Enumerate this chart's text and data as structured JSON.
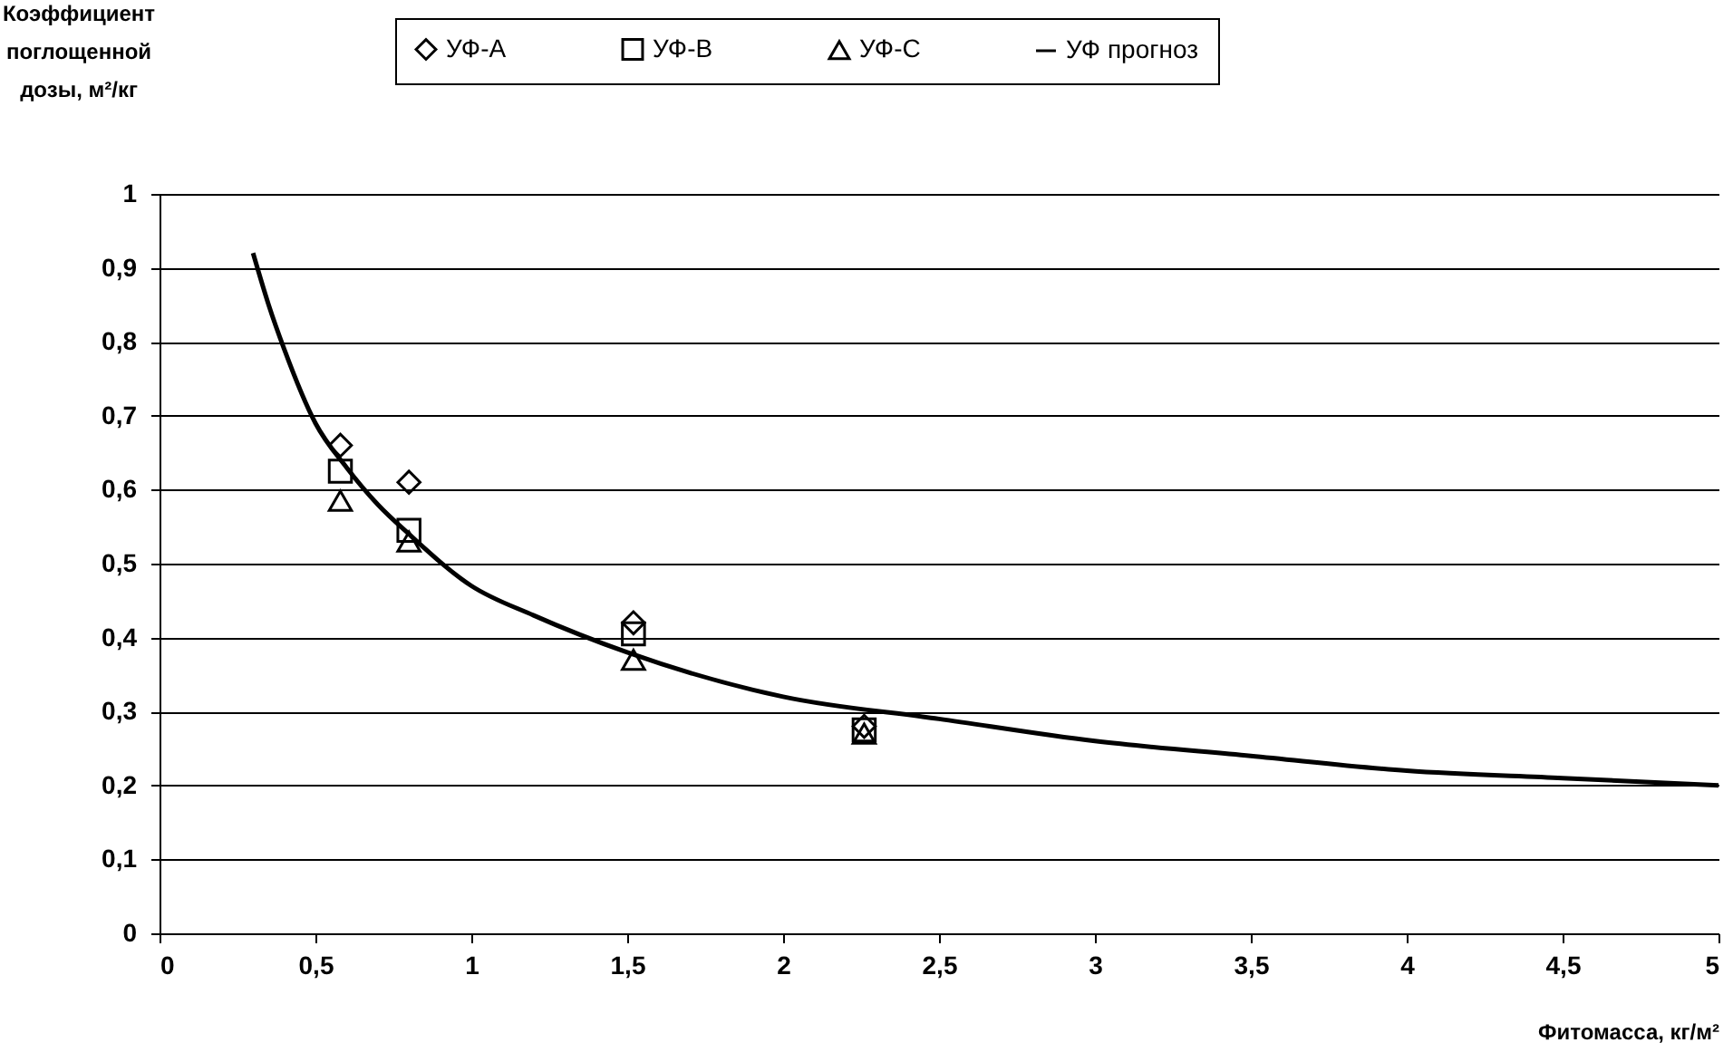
{
  "chart_data": {
    "type": "scatter",
    "xlabel": "Фитомасса, кг/м²",
    "ylabel": "Коэффициент поглощенной дозы, м²/кг",
    "x": [
      0.58,
      0.8,
      1.52,
      2.26
    ],
    "series": [
      {
        "name": "УФ-А",
        "color": "#000000",
        "marker": "diamond",
        "values": [
          0.66,
          0.61,
          0.42,
          0.28
        ]
      },
      {
        "name": "УФ-В",
        "color": "#000000",
        "marker": "square",
        "values": [
          0.625,
          0.545,
          0.405,
          0.275
        ]
      },
      {
        "name": "УФ-С",
        "color": "#000000",
        "marker": "triangle",
        "values": [
          0.585,
          0.53,
          0.37,
          0.27
        ]
      },
      {
        "name": "УФ прогноз",
        "type": "line",
        "color": "#000000",
        "line_style": "solid",
        "x": [
          0.3,
          0.35,
          0.4,
          0.5,
          0.6,
          0.7,
          0.8,
          1,
          1.2,
          1.5,
          2,
          2.5,
          3,
          3.5,
          4,
          4.5,
          5
        ],
        "values": [
          0.92,
          0.85,
          0.79,
          0.69,
          0.63,
          0.58,
          0.54,
          0.47,
          0.43,
          0.38,
          0.32,
          0.29,
          0.26,
          0.24,
          0.22,
          0.21,
          0.2
        ]
      }
    ],
    "xlim": [
      0,
      5
    ],
    "xticks": [
      0,
      {
        "value": 0.5,
        "label": "0,5"
      },
      1,
      {
        "value": 1.5,
        "label": "1,5"
      },
      2,
      {
        "value": 2.5,
        "label": "2,5"
      },
      3,
      {
        "value": 3.5,
        "label": "3,5"
      },
      4,
      {
        "value": 4.5,
        "label": "4,5"
      },
      5
    ],
    "ylim": [
      0,
      1
    ],
    "yticks": [
      0,
      {
        "value": 0.1,
        "label": "0,1"
      },
      {
        "value": 0.2,
        "label": "0,2"
      },
      {
        "value": 0.3,
        "label": "0,3"
      },
      {
        "value": 0.4,
        "label": "0,4"
      },
      {
        "value": 0.5,
        "label": "0,5"
      },
      {
        "value": 0.6,
        "label": "0,6"
      },
      {
        "value": 0.7,
        "label": "0,7"
      },
      {
        "value": 0.8,
        "label": "0,8"
      },
      {
        "value": 0.9,
        "label": "0,9"
      },
      1
    ],
    "grid": "y",
    "legend": "top"
  }
}
